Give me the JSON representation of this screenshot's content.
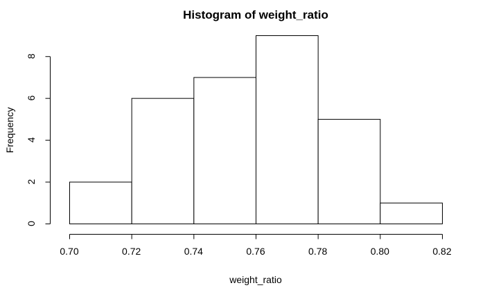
{
  "chart_data": {
    "type": "bar",
    "title": "Histogram of weight_ratio",
    "xlabel": "weight_ratio",
    "ylabel": "Frequency",
    "bins": [
      {
        "from": 0.7,
        "to": 0.72,
        "count": 2
      },
      {
        "from": 0.72,
        "to": 0.74,
        "count": 6
      },
      {
        "from": 0.74,
        "to": 0.76,
        "count": 7
      },
      {
        "from": 0.76,
        "to": 0.78,
        "count": 9
      },
      {
        "from": 0.78,
        "to": 0.8,
        "count": 5
      },
      {
        "from": 0.8,
        "to": 0.82,
        "count": 1
      }
    ],
    "x_ticks": [
      "0.70",
      "0.72",
      "0.74",
      "0.76",
      "0.78",
      "0.80",
      "0.82"
    ],
    "y_ticks": [
      "0",
      "2",
      "4",
      "6",
      "8"
    ],
    "xlim": [
      0.7,
      0.82
    ],
    "ylim": [
      0,
      9
    ],
    "grid": false
  }
}
